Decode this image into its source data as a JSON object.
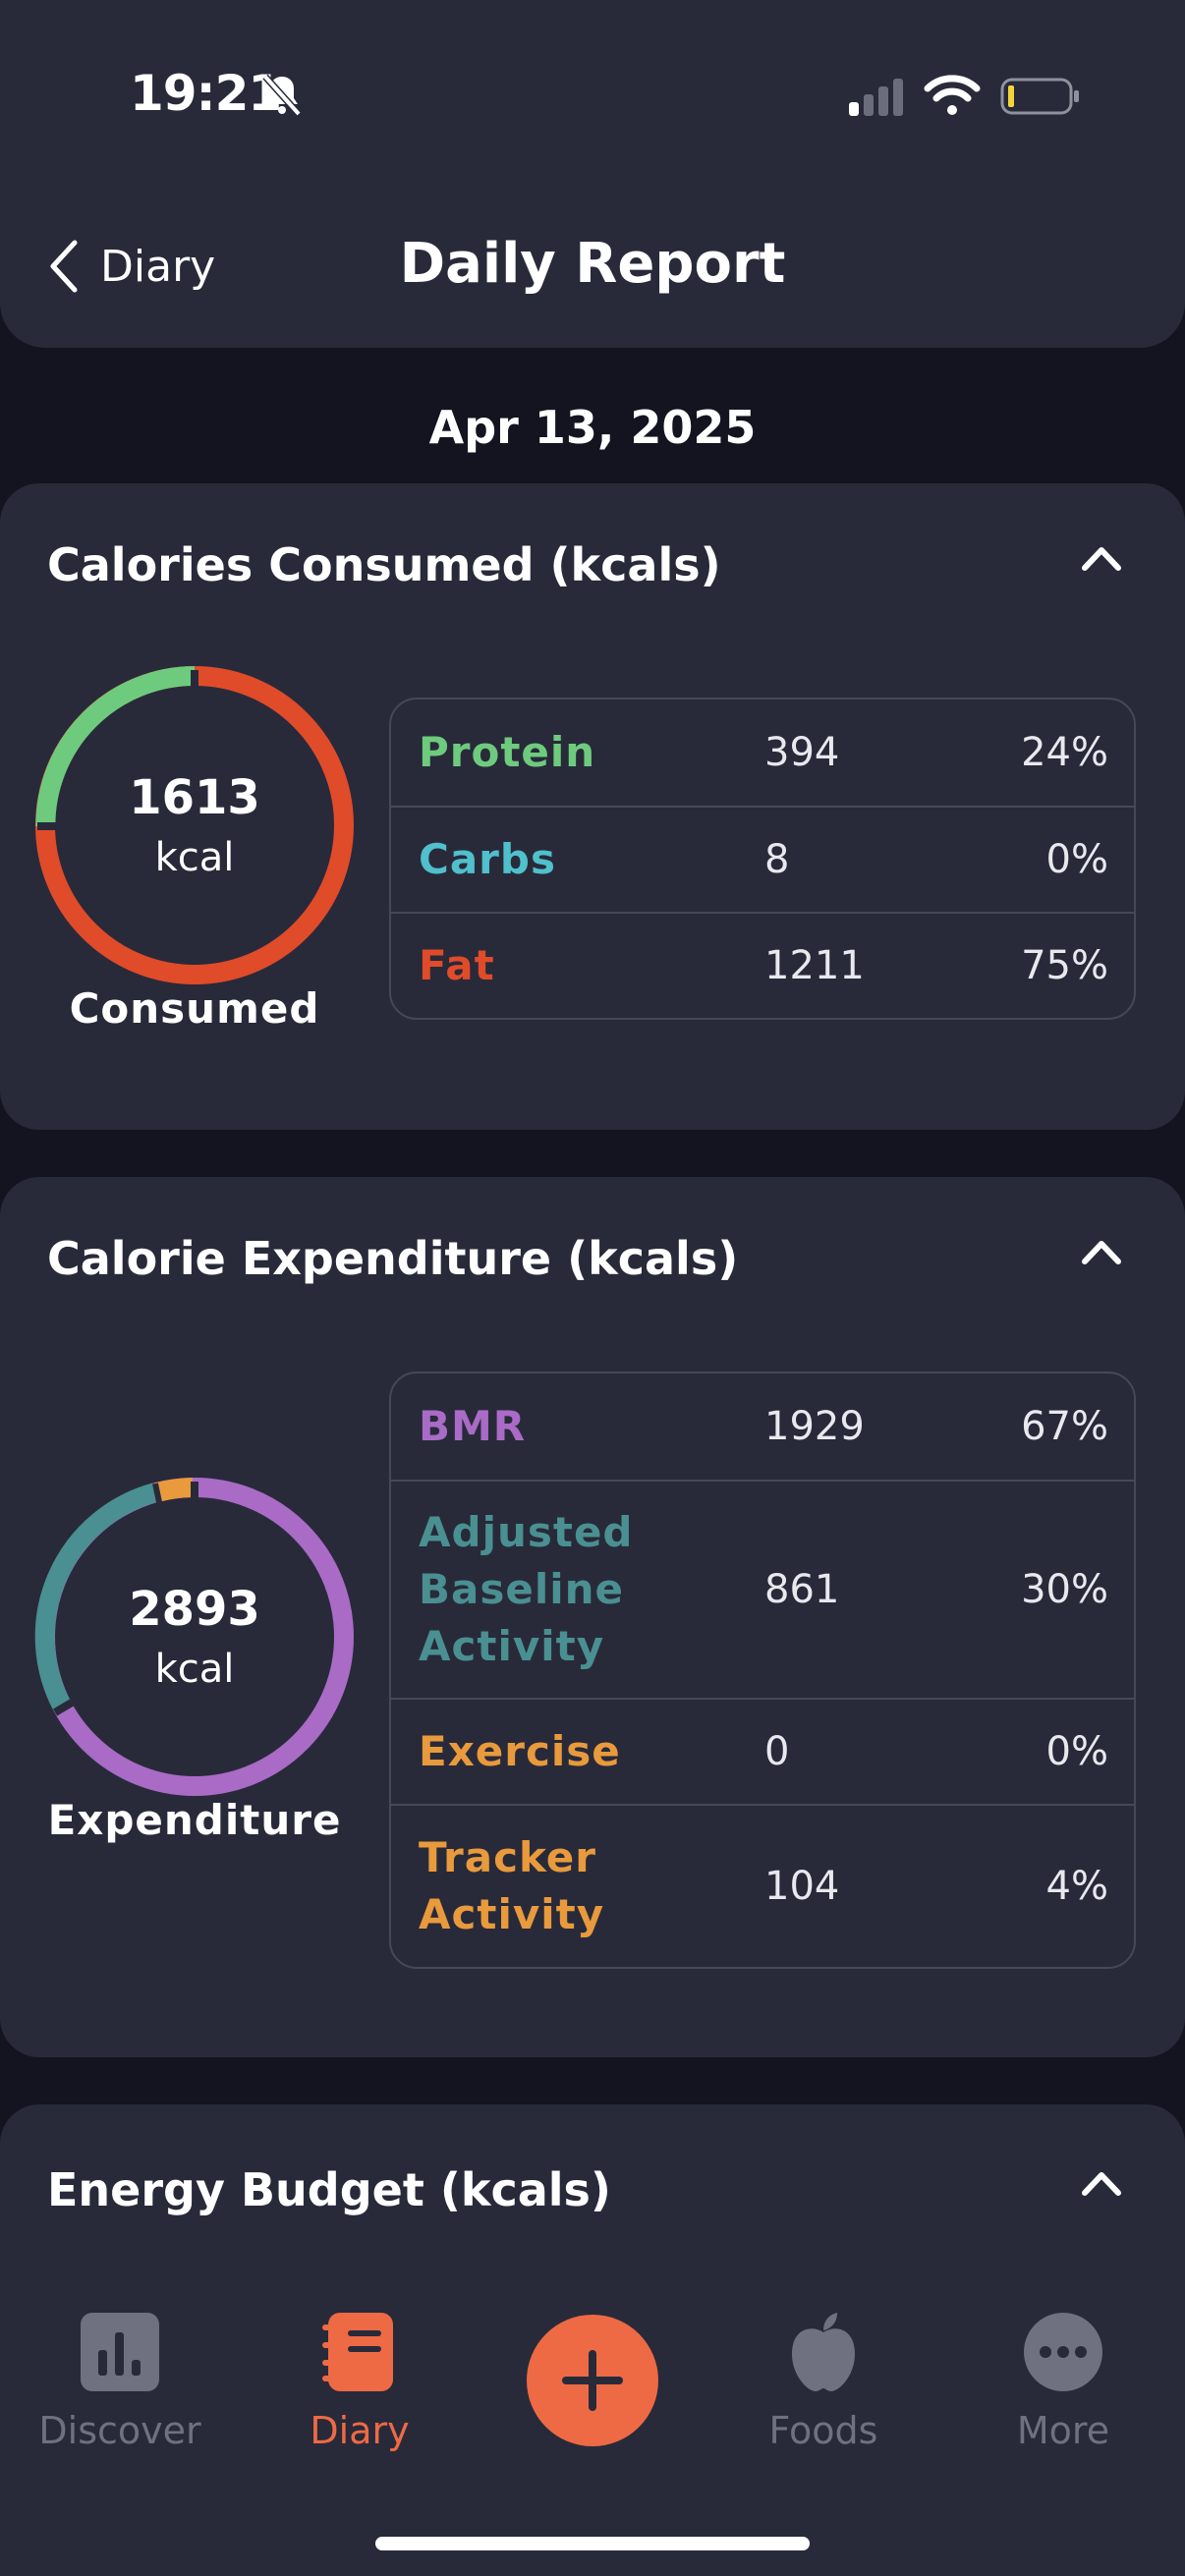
{
  "status_bar": {
    "time": "19:21"
  },
  "header": {
    "back_label": "Diary",
    "title": "Daily Report"
  },
  "date": "Apr 13, 2025",
  "calories_consumed": {
    "title": "Calories Consumed (kcals)",
    "total": "1613",
    "unit": "kcal",
    "caption": "Consumed",
    "rows": [
      {
        "name": "Protein",
        "value": "394",
        "pct": "24%",
        "color": "#6ecb7d"
      },
      {
        "name": "Carbs",
        "value": "8",
        "pct": "0%",
        "color": "#4fc0cc"
      },
      {
        "name": "Fat",
        "value": "1211",
        "pct": "75%",
        "color": "#e04b2a"
      }
    ]
  },
  "calorie_expenditure": {
    "title": "Calorie Expenditure (kcals)",
    "total": "2893",
    "unit": "kcal",
    "caption": "Expenditure",
    "rows": [
      {
        "name": "BMR",
        "value": "1929",
        "pct": "67%",
        "color": "#a96bc6"
      },
      {
        "name": "Adjusted Baseline Activity",
        "name_lines": [
          "Adjusted",
          "Baseline",
          "Activity"
        ],
        "value": "861",
        "pct": "30%",
        "color": "#4a8f91"
      },
      {
        "name": "Exercise",
        "value": "0",
        "pct": "0%",
        "color": "#e89a3c"
      },
      {
        "name": "Tracker Activity",
        "name_lines": [
          "Tracker",
          "Activity"
        ],
        "value": "104",
        "pct": "4%",
        "color": "#e89a3c"
      }
    ]
  },
  "energy_budget": {
    "title": "Energy Budget (kcals)"
  },
  "tabbar": {
    "discover": "Discover",
    "diary": "Diary",
    "foods": "Foods",
    "more": "More"
  },
  "colors": {
    "accent": "#ee6a44",
    "card": "#282a3a",
    "background": "#13141f"
  }
}
